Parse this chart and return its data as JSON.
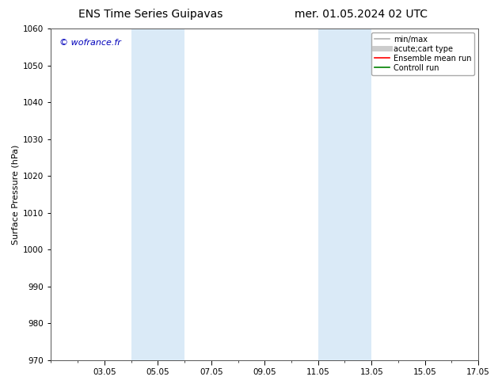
{
  "title_left": "ENS Time Series Guipavas",
  "title_right": "mer. 01.05.2024 02 UTC",
  "ylabel": "Surface Pressure (hPa)",
  "ylim": [
    970,
    1060
  ],
  "yticks": [
    970,
    980,
    990,
    1000,
    1010,
    1020,
    1030,
    1040,
    1050,
    1060
  ],
  "xlim": [
    1,
    17
  ],
  "xtick_labels": [
    "03.05",
    "05.05",
    "07.05",
    "09.05",
    "11.05",
    "13.05",
    "15.05",
    "17.05"
  ],
  "xtick_positions": [
    3,
    5,
    7,
    9,
    11,
    13,
    15,
    17
  ],
  "shaded_regions": [
    {
      "x_start": 4.0,
      "x_end": 6.0,
      "color": "#daeaf7"
    },
    {
      "x_start": 11.0,
      "x_end": 13.0,
      "color": "#daeaf7"
    }
  ],
  "watermark": "© wofrance.fr",
  "watermark_color": "#0000bb",
  "bg_color": "#ffffff",
  "legend_items": [
    {
      "label": "min/max",
      "color": "#b0b0b0",
      "lw": 1.2
    },
    {
      "label": "acute;cart type",
      "color": "#cccccc",
      "lw": 5
    },
    {
      "label": "Ensemble mean run",
      "color": "#ff0000",
      "lw": 1.2
    },
    {
      "label": "Controll run",
      "color": "#008000",
      "lw": 1.2
    }
  ],
  "title_fontsize": 10,
  "tick_fontsize": 7.5,
  "ylabel_fontsize": 8,
  "watermark_fontsize": 8
}
